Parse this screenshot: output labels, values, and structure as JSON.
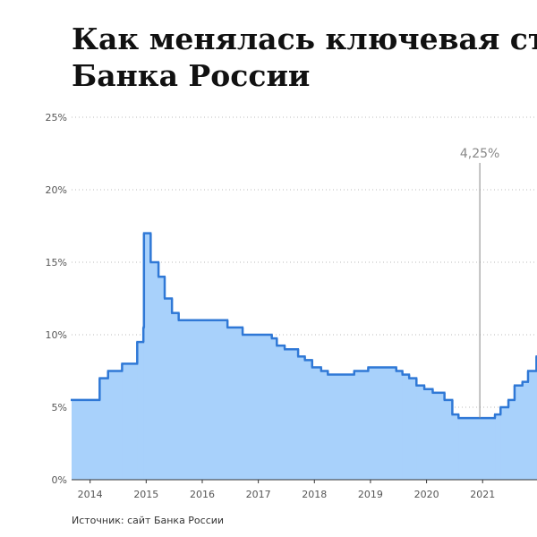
{
  "chart_data": {
    "type": "step-area",
    "title_lines": [
      "Как менялась ключевая ст",
      "Банка России"
    ],
    "source": "Источник: сайт Банка России",
    "x": [
      2013.67,
      2014.17,
      2014.32,
      2014.57,
      2014.84,
      2014.95,
      2014.96,
      2015.08,
      2015.22,
      2015.33,
      2015.46,
      2015.58,
      2016.45,
      2016.72,
      2017.24,
      2017.33,
      2017.47,
      2017.71,
      2017.83,
      2017.96,
      2018.12,
      2018.24,
      2018.71,
      2018.96,
      2019.46,
      2019.57,
      2019.69,
      2019.82,
      2019.96,
      2020.11,
      2020.32,
      2020.46,
      2020.57,
      2021.22,
      2021.32,
      2021.46,
      2021.57,
      2021.71,
      2021.81,
      2021.96
    ],
    "values": [
      5.5,
      7,
      7.5,
      8,
      9.5,
      10.5,
      17,
      15,
      14,
      12.5,
      11.5,
      11,
      10.5,
      10,
      9.75,
      9.25,
      9,
      8.5,
      8.25,
      7.75,
      7.5,
      7.25,
      7.5,
      7.75,
      7.5,
      7.25,
      7,
      6.5,
      6.25,
      6,
      5.5,
      4.5,
      4.25,
      4.5,
      5,
      5.5,
      6.5,
      6.75,
      7.5,
      8.5
    ],
    "color": "#2f78d6",
    "fill": "#a8d1fb",
    "xlim": [
      2013.67,
      2021.97
    ],
    "xticks": [
      2014,
      2015,
      2016,
      2017,
      2018,
      2019,
      2020,
      2021
    ],
    "ylim": [
      0,
      25
    ],
    "yticks": [
      {
        "value": 0,
        "label": "0%"
      },
      {
        "value": 5,
        "label": "5%"
      },
      {
        "value": 10,
        "label": "10%"
      },
      {
        "value": 15,
        "label": "15%"
      },
      {
        "value": 20,
        "label": "20%"
      },
      {
        "value": 25,
        "label": "25%"
      }
    ],
    "grid": true,
    "annotation": {
      "x": 2020.95,
      "y": 4.25,
      "label": "4,25%"
    }
  }
}
